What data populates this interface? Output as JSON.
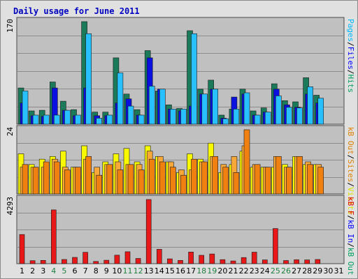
{
  "title": "Daily usage for June 2011",
  "chart_data": [
    {
      "type": "bar",
      "panel": "top",
      "ymax_label": "170",
      "ylim": [
        0,
        170
      ],
      "right_labels": [
        {
          "text": "Pages",
          "color": "#00b8ff"
        },
        {
          "text": "/",
          "color": "#000000"
        },
        {
          "text": "Files",
          "color": "#0000ff"
        },
        {
          "text": "/",
          "color": "#000000"
        },
        {
          "text": "Hits",
          "color": "#00a060"
        }
      ],
      "series": [
        {
          "name": "Hits",
          "color": "#1a7a5a",
          "values": [
            60,
            22,
            23,
            70,
            38,
            24,
            170,
            20,
            20,
            110,
            50,
            24,
            122,
            55,
            32,
            26,
            155,
            58,
            73,
            15,
            25,
            58,
            22,
            27,
            67,
            39,
            37,
            77,
            48,
            0
          ]
        },
        {
          "name": "Files",
          "color": "#0a10e0",
          "values": [
            35,
            14,
            13,
            60,
            23,
            14,
            60,
            14,
            14,
            35,
            42,
            15,
            110,
            58,
            25,
            22,
            30,
            50,
            58,
            10,
            45,
            50,
            15,
            20,
            58,
            32,
            28,
            50,
            35,
            0
          ]
        },
        {
          "name": "Pages",
          "color": "#28c0ff",
          "values": [
            55,
            15,
            15,
            15,
            23,
            15,
            150,
            10,
            15,
            85,
            30,
            15,
            63,
            58,
            25,
            25,
            150,
            50,
            58,
            9,
            25,
            52,
            15,
            20,
            47,
            28,
            27,
            62,
            43,
            0
          ]
        }
      ]
    },
    {
      "type": "bar",
      "panel": "middle",
      "ymax_label": "24",
      "ylim": [
        0,
        24
      ],
      "right_labels": [
        {
          "text": "kB Out",
          "color": "#e08000"
        },
        {
          "text": "/",
          "color": "#000000"
        },
        {
          "text": "Sites",
          "color": "#e08000"
        },
        {
          "text": "/",
          "color": "#000000"
        },
        {
          "text": "Visits",
          "color": "#e0e000"
        }
      ],
      "series": [
        {
          "name": "Visits",
          "color": "#f8f800",
          "values": [
            15,
            11,
            13,
            14,
            16,
            10,
            18,
            8,
            12,
            15,
            17,
            12,
            18,
            14,
            12,
            8,
            15,
            13,
            19,
            8,
            11,
            16,
            10,
            10,
            10,
            11,
            14,
            11,
            11,
            0
          ]
        },
        {
          "name": "Sites",
          "color": "#f8a838",
          "values": [
            10,
            10,
            10,
            13,
            10,
            10,
            13,
            10,
            11,
            12,
            11,
            11,
            16,
            14,
            12,
            9,
            9,
            12,
            14,
            11,
            14,
            18,
            11,
            10,
            14,
            10,
            14,
            12,
            11,
            0
          ]
        },
        {
          "name": "kB Out",
          "color": "#f08010",
          "values": [
            11,
            10,
            12,
            12,
            9,
            10,
            14,
            7,
            11,
            9,
            11,
            9,
            13,
            12,
            10,
            7,
            13,
            12,
            14,
            10,
            8,
            24,
            11,
            10,
            14,
            10,
            14,
            11,
            10,
            0
          ]
        }
      ]
    },
    {
      "type": "bar",
      "panel": "bottom",
      "ymax_label": "4293",
      "ylim": [
        0,
        4293
      ],
      "right_labels": [
        {
          "text": "kB F",
          "color": "#e00000"
        },
        {
          "text": "/",
          "color": "#000000"
        },
        {
          "text": "kB In",
          "color": "#0000ff"
        },
        {
          "text": "/",
          "color": "#000000"
        },
        {
          "text": "kB Out",
          "color": "#00a060"
        }
      ],
      "series": [
        {
          "name": "kB F",
          "color": "#e81818",
          "values": [
            1950,
            200,
            220,
            3600,
            280,
            420,
            760,
            150,
            230,
            570,
            800,
            350,
            4293,
            960,
            320,
            220,
            780,
            560,
            650,
            270,
            180,
            410,
            770,
            250,
            2350,
            210,
            260,
            250,
            280,
            0
          ]
        }
      ]
    }
  ],
  "x_axis": {
    "labels": [
      "1",
      "2",
      "3",
      "4",
      "5",
      "6",
      "7",
      "8",
      "9",
      "10",
      "11",
      "12",
      "13",
      "14",
      "15",
      "16",
      "17",
      "18",
      "19",
      "20",
      "21",
      "22",
      "23",
      "24",
      "25",
      "26",
      "27",
      "28",
      "29",
      "30",
      "31"
    ],
    "weekend_days": [
      "4",
      "5",
      "11",
      "12",
      "18",
      "19",
      "25",
      "26"
    ],
    "weekday_color": "#000000",
    "weekend_color": "#208040"
  }
}
